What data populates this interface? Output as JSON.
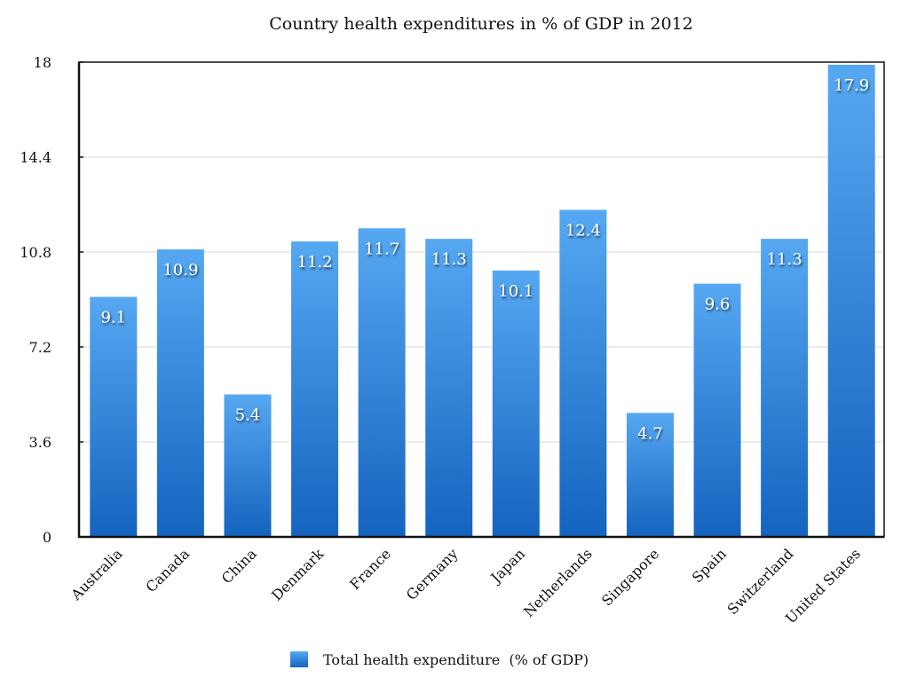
{
  "chart_data": {
    "type": "bar",
    "title": "Country health expenditures in % of GDP in 2012",
    "xlabel": "",
    "ylabel": "",
    "categories": [
      "Australia",
      "Canada",
      "China",
      "Denmark",
      "France",
      "Germany",
      "Japan",
      "Netherlands",
      "Singapore",
      "Spain",
      "Switzerland",
      "United States"
    ],
    "series": [
      {
        "name": "Total health expenditure  (% of GDP)",
        "values": [
          9.1,
          10.9,
          5.4,
          11.2,
          11.7,
          11.3,
          10.1,
          12.4,
          4.7,
          9.6,
          11.3,
          17.9
        ],
        "color_top": "#56a8f2",
        "color_bottom": "#1463bf"
      }
    ],
    "data_labels": [
      "9.1",
      "10.9",
      "5.4",
      "11.2",
      "11.7",
      "11.3",
      "10.1",
      "12.4",
      "4.7",
      "9.6",
      "11.3",
      "17.9"
    ],
    "ylim": [
      0,
      18
    ],
    "yticks": [
      0,
      3.6,
      7.2,
      10.8,
      14.4,
      18
    ],
    "ytick_labels": [
      "0",
      "3.6",
      "7.2",
      "10.8",
      "14.4",
      "18"
    ],
    "grid": true,
    "legend": {
      "position": "bottom-center",
      "label": "Total health expenditure  (% of GDP)"
    },
    "colors": {
      "axis": "#111111",
      "grid": "#d9d9d9"
    }
  }
}
